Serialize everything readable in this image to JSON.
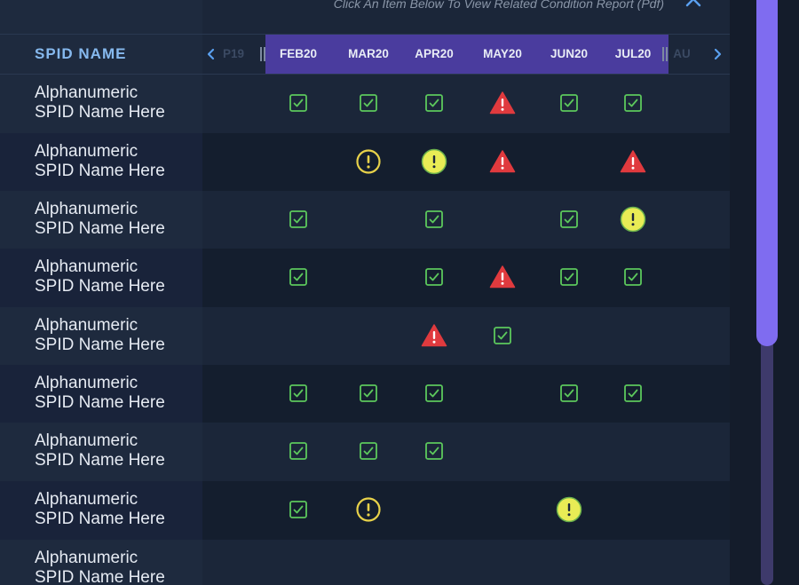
{
  "header": {
    "subtitle": "Click An Item Below To View Related Condition Report (Pdf)",
    "spid_name_label": "SPID NAME",
    "collapse_icon": "chevron-up-icon"
  },
  "months": {
    "prev_partial": "P19",
    "visible": [
      "FEB20",
      "MAR20",
      "APR20",
      "MAY20",
      "JUN20",
      "JUL20"
    ],
    "next_partial": "AU"
  },
  "status_legend": {
    "ok": "check-box-icon",
    "caution": "exclamation-circle-outline-icon",
    "notice": "exclamation-circle-filled-icon",
    "alert": "warning-triangle-icon"
  },
  "colors": {
    "ok": "#5cc85c",
    "caution": "#e8d24a",
    "notice": "#e9ec55",
    "alert": "#e03a3e",
    "month_band": "#4a3c9e",
    "accent": "#86b9ee",
    "scroll_thumb": "#7f6cf0"
  },
  "rows": [
    {
      "name_line1": "Alphanumeric",
      "name_line2": "SPID Name Here",
      "cells": [
        "ok",
        "ok",
        "ok",
        "alert",
        "ok",
        "ok"
      ]
    },
    {
      "name_line1": "Alphanumeric",
      "name_line2": "SPID Name Here",
      "cells": [
        null,
        "caution",
        "notice",
        "alert",
        null,
        "alert"
      ]
    },
    {
      "name_line1": "Alphanumeric",
      "name_line2": "SPID Name Here",
      "cells": [
        "ok",
        null,
        "ok",
        null,
        "ok",
        "notice"
      ]
    },
    {
      "name_line1": "Alphanumeric",
      "name_line2": "SPID Name Here",
      "cells": [
        "ok",
        null,
        "ok",
        "alert",
        "ok",
        "ok"
      ]
    },
    {
      "name_line1": "Alphanumeric",
      "name_line2": "SPID Name Here",
      "cells": [
        null,
        null,
        "alert",
        "ok",
        null,
        null
      ]
    },
    {
      "name_line1": "Alphanumeric",
      "name_line2": "SPID Name Here",
      "cells": [
        "ok",
        "ok",
        "ok",
        null,
        "ok",
        "ok"
      ]
    },
    {
      "name_line1": "Alphanumeric",
      "name_line2": "SPID Name Here",
      "cells": [
        "ok",
        "ok",
        "ok",
        null,
        null,
        null
      ]
    },
    {
      "name_line1": "Alphanumeric",
      "name_line2": "SPID Name Here",
      "cells": [
        "ok",
        "caution",
        null,
        null,
        "notice",
        null
      ]
    },
    {
      "name_line1": "Alphanumeric",
      "name_line2": "SPID Name Here",
      "cells": [
        null,
        null,
        null,
        null,
        null,
        null
      ]
    }
  ]
}
